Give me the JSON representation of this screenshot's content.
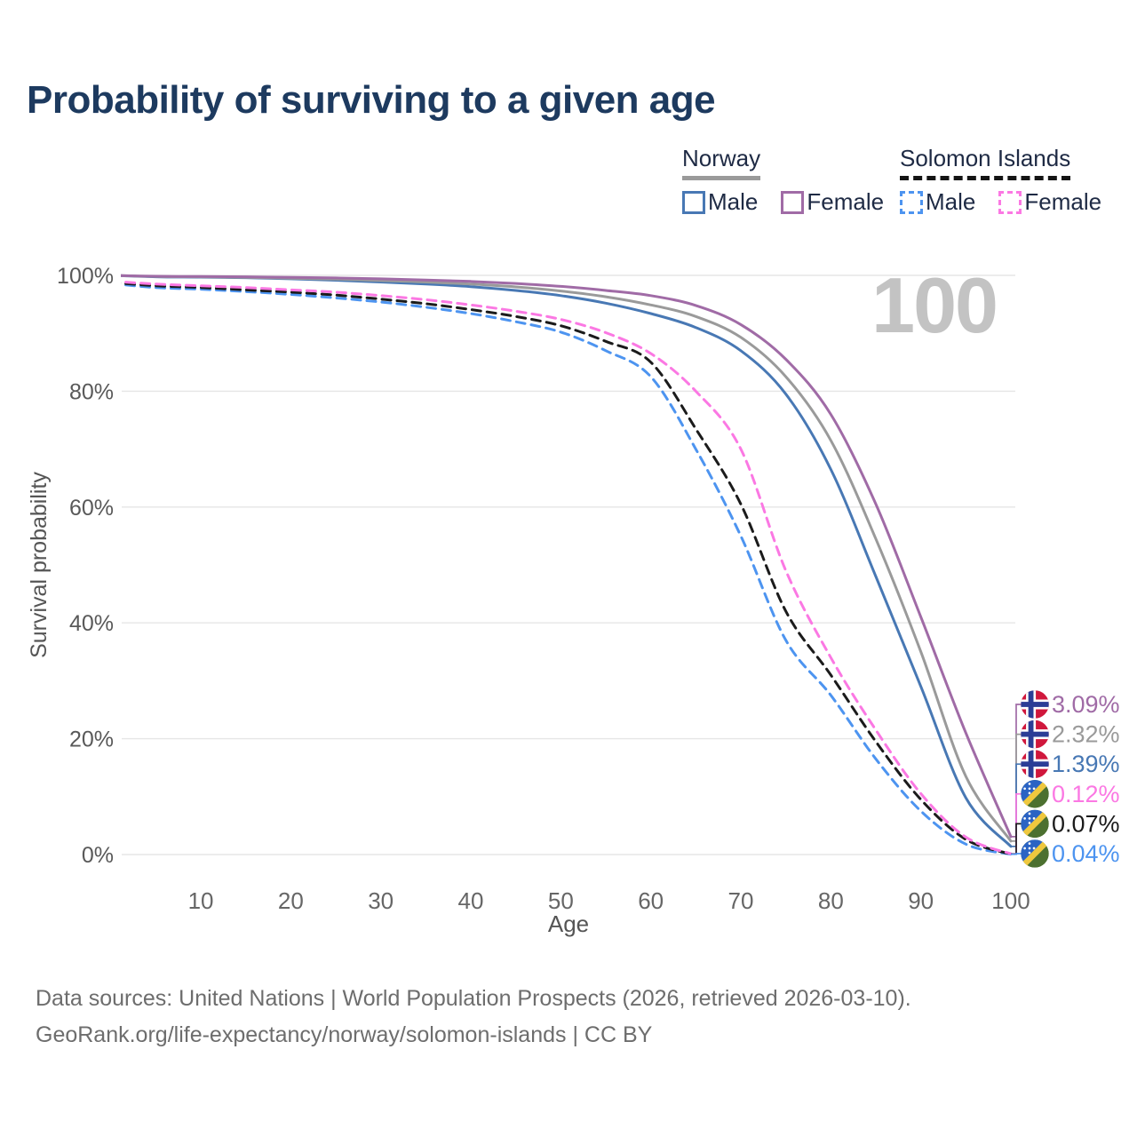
{
  "title": "Probability of surviving to a given age",
  "watermark": "100",
  "legend": {
    "groups": [
      {
        "name": "Norway",
        "line_style": "solid",
        "underline_color": "#9a9a9a",
        "items": [
          {
            "label": "Male",
            "color": "#4878b4"
          },
          {
            "label": "Female",
            "color": "#a06ba6"
          }
        ]
      },
      {
        "name": "Solomon Islands",
        "line_style": "dashed",
        "underline_color": "#141414",
        "items": [
          {
            "label": "Male",
            "color": "#4d94f0"
          },
          {
            "label": "Female",
            "color": "#fb78e3"
          }
        ]
      }
    ]
  },
  "footer": {
    "line1": "Data sources: United Nations | World Population Prospects (2026, retrieved 2026-03-10).",
    "line2": "GeoRank.org/life-expectancy/norway/solomon-islands | CC BY"
  },
  "chart_data": {
    "type": "line",
    "title": "Probability of surviving to a given age",
    "xlabel": "Age",
    "ylabel": "Survival probability",
    "xlim": [
      0,
      100
    ],
    "ylim": [
      0,
      100
    ],
    "grid": "horizontal-only",
    "legend_position": "top-right",
    "xticks": [
      "10",
      "20",
      "30",
      "40",
      "50",
      "60",
      "70",
      "80",
      "90",
      "100"
    ],
    "xtick_values": [
      10,
      20,
      30,
      40,
      50,
      60,
      70,
      80,
      90,
      100
    ],
    "yticks": [
      "0%",
      "20%",
      "40%",
      "60%",
      "80%",
      "100%"
    ],
    "ytick_values": [
      0,
      20,
      40,
      60,
      80,
      100
    ],
    "x": [
      0,
      5,
      10,
      15,
      20,
      25,
      30,
      35,
      40,
      45,
      50,
      55,
      60,
      65,
      70,
      75,
      80,
      85,
      90,
      95,
      100
    ],
    "series": [
      {
        "name": "Norway Female",
        "country": "Norway",
        "sex": "Female",
        "color": "#a06ba6",
        "dash": "solid",
        "end_label": "3.09%",
        "flag": "norway",
        "values": [
          100,
          99.85,
          99.8,
          99.75,
          99.65,
          99.55,
          99.4,
          99.2,
          98.95,
          98.6,
          98.1,
          97.4,
          96.5,
          94.8,
          91.5,
          85.5,
          76,
          60.5,
          41,
          21,
          3.09
        ]
      },
      {
        "name": "Norway Both sexes",
        "country": "Norway",
        "sex": "Both",
        "color": "#9a9a9a",
        "dash": "solid",
        "end_label": "2.32%",
        "flag": "norway",
        "values": [
          100,
          99.8,
          99.75,
          99.65,
          99.5,
          99.35,
          99.1,
          98.85,
          98.5,
          98,
          97.3,
          96.3,
          94.9,
          92.9,
          89.3,
          82.5,
          71.5,
          54.5,
          35,
          13.5,
          2.32
        ]
      },
      {
        "name": "Norway Male",
        "country": "Norway",
        "sex": "Male",
        "color": "#4878b4",
        "dash": "solid",
        "end_label": "1.39%",
        "flag": "norway",
        "values": [
          100,
          99.75,
          99.7,
          99.6,
          99.4,
          99.15,
          98.85,
          98.5,
          98.05,
          97.4,
          96.5,
          95.2,
          93.4,
          91,
          87,
          79.5,
          66.5,
          48,
          29,
          9.8,
          1.39
        ]
      },
      {
        "name": "Solomon Islands Female",
        "country": "Solomon Islands",
        "sex": "Female",
        "color": "#fb78e3",
        "dash": "dashed",
        "end_label": "0.12%",
        "flag": "solomon-islands",
        "values": [
          99,
          98.5,
          98.2,
          97.9,
          97.5,
          97.1,
          96.5,
          95.8,
          94.9,
          93.8,
          92.4,
          90.1,
          86.5,
          80,
          70,
          49,
          34,
          21.5,
          10.5,
          3,
          0.12
        ]
      },
      {
        "name": "Solomon Islands Both sexes",
        "country": "Solomon Islands",
        "sex": "Both",
        "color": "#1b1b1b",
        "dash": "dashed",
        "end_label": "0.07%",
        "flag": "solomon-islands",
        "values": [
          98.8,
          98.2,
          97.9,
          97.5,
          97.1,
          96.6,
          95.9,
          95.1,
          94.1,
          92.9,
          91.3,
          88.6,
          85,
          73.5,
          60.5,
          42,
          31,
          19.5,
          9.5,
          2.6,
          0.07
        ]
      },
      {
        "name": "Solomon Islands Male",
        "country": "Solomon Islands",
        "sex": "Male",
        "color": "#4d94f0",
        "dash": "dashed",
        "end_label": "0.04%",
        "flag": "solomon-islands",
        "values": [
          98.6,
          97.9,
          97.6,
          97.2,
          96.7,
          96.1,
          95.4,
          94.5,
          93.4,
          92,
          90.2,
          87,
          82.5,
          70,
          55,
          37,
          27.5,
          16.5,
          7.5,
          1.8,
          0.04
        ]
      }
    ]
  }
}
